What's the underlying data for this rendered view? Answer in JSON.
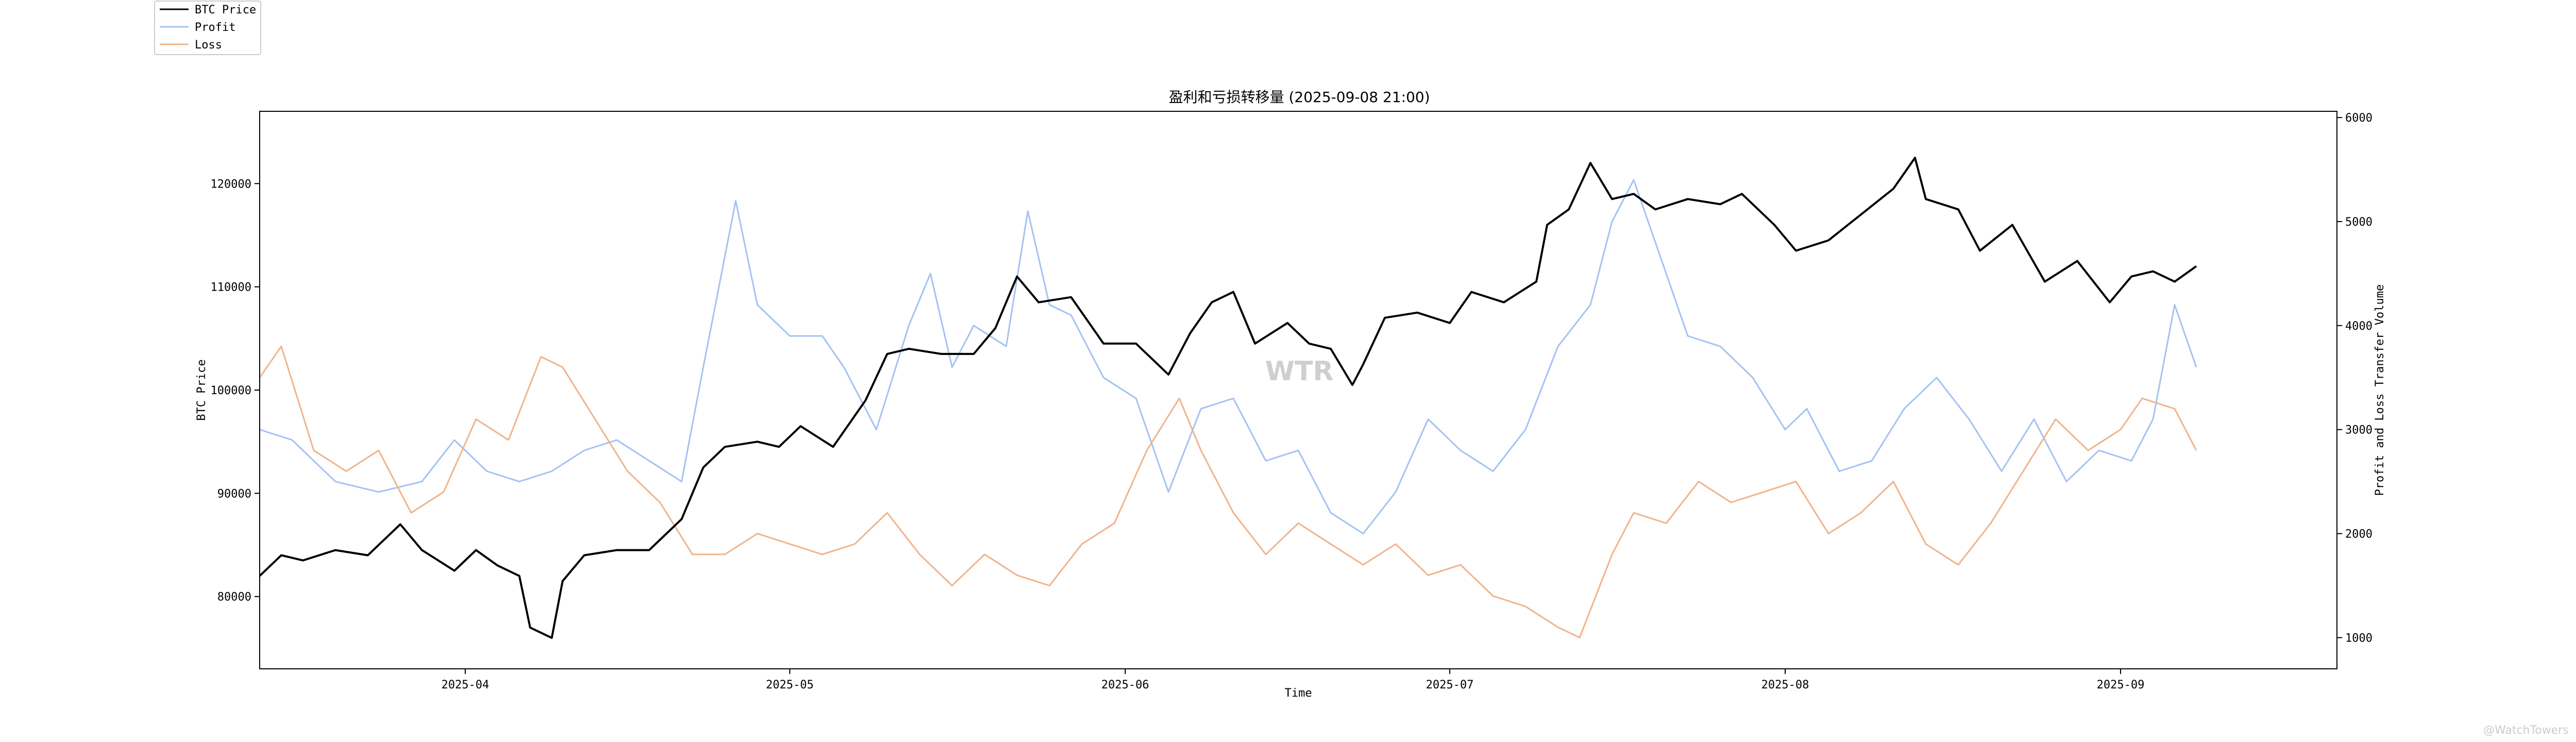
{
  "chart_data": {
    "type": "line",
    "title": "盈利和亏损转移量 (2025-09-08 21:00)",
    "xlabel": "Time",
    "ylabel_left": "BTC Price",
    "ylabel_right": "Profit and Loss Transfer Volume",
    "x_ticks": [
      "2025-04",
      "2025-05",
      "2025-06",
      "2025-07",
      "2025-08",
      "2025-09"
    ],
    "x_tick_dates": [
      "2025-04-01",
      "2025-05-01",
      "2025-06-01",
      "2025-07-01",
      "2025-08-01",
      "2025-09-01"
    ],
    "xlim": [
      "2025-03-13",
      "2025-09-21"
    ],
    "left_yticks": [
      80000,
      90000,
      100000,
      110000,
      120000
    ],
    "left_ylim": [
      73000,
      127000
    ],
    "right_yticks": [
      1000,
      2000,
      3000,
      4000,
      5000,
      6000
    ],
    "right_ylim": [
      700,
      6060
    ],
    "legend_position": "top-left (outside plot)",
    "grid": false,
    "watermark": "WTR",
    "series": [
      {
        "name": "BTC Price",
        "axis": "left",
        "color": "#000000",
        "highlight_color": "#1a1a8c",
        "points": [
          [
            "2025-03-13",
            82000
          ],
          [
            "2025-03-15",
            84000
          ],
          [
            "2025-03-17",
            83500
          ],
          [
            "2025-03-20",
            84500
          ],
          [
            "2025-03-23",
            84000
          ],
          [
            "2025-03-26",
            87000
          ],
          [
            "2025-03-28",
            84500
          ],
          [
            "2025-03-31",
            82500
          ],
          [
            "2025-04-02",
            84500
          ],
          [
            "2025-04-04",
            83000
          ],
          [
            "2025-04-06",
            82000
          ],
          [
            "2025-04-07",
            77000
          ],
          [
            "2025-04-09",
            76000
          ],
          [
            "2025-04-10",
            81500
          ],
          [
            "2025-04-12",
            84000
          ],
          [
            "2025-04-15",
            84500
          ],
          [
            "2025-04-18",
            84500
          ],
          [
            "2025-04-21",
            87500
          ],
          [
            "2025-04-23",
            92500
          ],
          [
            "2025-04-25",
            94500
          ],
          [
            "2025-04-28",
            95000
          ],
          [
            "2025-04-30",
            94500
          ],
          [
            "2025-05-02",
            96500
          ],
          [
            "2025-05-05",
            94500
          ],
          [
            "2025-05-08",
            99000
          ],
          [
            "2025-05-10",
            103500
          ],
          [
            "2025-05-12",
            104000
          ],
          [
            "2025-05-15",
            103500
          ],
          [
            "2025-05-18",
            103500
          ],
          [
            "2025-05-20",
            106000
          ],
          [
            "2025-05-22",
            111000
          ],
          [
            "2025-05-24",
            108500
          ],
          [
            "2025-05-27",
            109000
          ],
          [
            "2025-05-30",
            104500
          ],
          [
            "2025-06-02",
            104500
          ],
          [
            "2025-06-05",
            101500
          ],
          [
            "2025-06-07",
            105500
          ],
          [
            "2025-06-09",
            108500
          ],
          [
            "2025-06-11",
            109500
          ],
          [
            "2025-06-13",
            104500
          ],
          [
            "2025-06-16",
            106500
          ],
          [
            "2025-06-18",
            104500
          ],
          [
            "2025-06-20",
            104000
          ],
          [
            "2025-06-22",
            100500
          ],
          [
            "2025-06-23",
            102500
          ],
          [
            "2025-06-25",
            107000
          ],
          [
            "2025-06-28",
            107500
          ],
          [
            "2025-07-01",
            106500
          ],
          [
            "2025-07-03",
            109500
          ],
          [
            "2025-07-06",
            108500
          ],
          [
            "2025-07-09",
            110500
          ],
          [
            "2025-07-10",
            116000
          ],
          [
            "2025-07-12",
            117500
          ],
          [
            "2025-07-14",
            122000
          ],
          [
            "2025-07-16",
            118500
          ],
          [
            "2025-07-18",
            119000
          ],
          [
            "2025-07-20",
            117500
          ],
          [
            "2025-07-23",
            118500
          ],
          [
            "2025-07-26",
            118000
          ],
          [
            "2025-07-28",
            119000
          ],
          [
            "2025-07-31",
            116000
          ],
          [
            "2025-08-02",
            113500
          ],
          [
            "2025-08-05",
            114500
          ],
          [
            "2025-08-08",
            117000
          ],
          [
            "2025-08-11",
            119500
          ],
          [
            "2025-08-13",
            122500
          ],
          [
            "2025-08-14",
            118500
          ],
          [
            "2025-08-17",
            117500
          ],
          [
            "2025-08-19",
            113500
          ],
          [
            "2025-08-22",
            116000
          ],
          [
            "2025-08-25",
            110500
          ],
          [
            "2025-08-28",
            112500
          ],
          [
            "2025-08-31",
            108500
          ],
          [
            "2025-09-02",
            111000
          ],
          [
            "2025-09-04",
            111500
          ],
          [
            "2025-09-06",
            110500
          ],
          [
            "2025-09-08",
            112000
          ]
        ]
      },
      {
        "name": "Profit",
        "axis": "right",
        "color": "#a4c2f4",
        "points": [
          [
            "2025-03-13",
            3000
          ],
          [
            "2025-03-16",
            2900
          ],
          [
            "2025-03-20",
            2500
          ],
          [
            "2025-03-24",
            2400
          ],
          [
            "2025-03-28",
            2500
          ],
          [
            "2025-03-31",
            2900
          ],
          [
            "2025-04-03",
            2600
          ],
          [
            "2025-04-06",
            2500
          ],
          [
            "2025-04-09",
            2600
          ],
          [
            "2025-04-12",
            2800
          ],
          [
            "2025-04-15",
            2900
          ],
          [
            "2025-04-18",
            2700
          ],
          [
            "2025-04-21",
            2500
          ],
          [
            "2025-04-23",
            3600
          ],
          [
            "2025-04-26",
            5200
          ],
          [
            "2025-04-28",
            4200
          ],
          [
            "2025-05-01",
            3900
          ],
          [
            "2025-05-04",
            3900
          ],
          [
            "2025-05-06",
            3600
          ],
          [
            "2025-05-09",
            3000
          ],
          [
            "2025-05-12",
            4000
          ],
          [
            "2025-05-14",
            4500
          ],
          [
            "2025-05-16",
            3600
          ],
          [
            "2025-05-18",
            4000
          ],
          [
            "2025-05-21",
            3800
          ],
          [
            "2025-05-23",
            5100
          ],
          [
            "2025-05-25",
            4200
          ],
          [
            "2025-05-27",
            4100
          ],
          [
            "2025-05-30",
            3500
          ],
          [
            "2025-06-02",
            3300
          ],
          [
            "2025-06-05",
            2400
          ],
          [
            "2025-06-08",
            3200
          ],
          [
            "2025-06-11",
            3300
          ],
          [
            "2025-06-14",
            2700
          ],
          [
            "2025-06-17",
            2800
          ],
          [
            "2025-06-20",
            2200
          ],
          [
            "2025-06-23",
            2000
          ],
          [
            "2025-06-26",
            2400
          ],
          [
            "2025-06-29",
            3100
          ],
          [
            "2025-07-02",
            2800
          ],
          [
            "2025-07-05",
            2600
          ],
          [
            "2025-07-08",
            3000
          ],
          [
            "2025-07-11",
            3800
          ],
          [
            "2025-07-14",
            4200
          ],
          [
            "2025-07-16",
            5000
          ],
          [
            "2025-07-18",
            5400
          ],
          [
            "2025-07-21",
            4500
          ],
          [
            "2025-07-23",
            3900
          ],
          [
            "2025-07-26",
            3800
          ],
          [
            "2025-07-29",
            3500
          ],
          [
            "2025-08-01",
            3000
          ],
          [
            "2025-08-03",
            3200
          ],
          [
            "2025-08-06",
            2600
          ],
          [
            "2025-08-09",
            2700
          ],
          [
            "2025-08-12",
            3200
          ],
          [
            "2025-08-15",
            3500
          ],
          [
            "2025-08-18",
            3100
          ],
          [
            "2025-08-21",
            2600
          ],
          [
            "2025-08-24",
            3100
          ],
          [
            "2025-08-27",
            2500
          ],
          [
            "2025-08-30",
            2800
          ],
          [
            "2025-09-02",
            2700
          ],
          [
            "2025-09-04",
            3100
          ],
          [
            "2025-09-06",
            4200
          ],
          [
            "2025-09-08",
            3600
          ]
        ]
      },
      {
        "name": "Loss",
        "axis": "right",
        "color": "#f0b48a",
        "points": [
          [
            "2025-03-13",
            3500
          ],
          [
            "2025-03-15",
            3800
          ],
          [
            "2025-03-18",
            2800
          ],
          [
            "2025-03-21",
            2600
          ],
          [
            "2025-03-24",
            2800
          ],
          [
            "2025-03-27",
            2200
          ],
          [
            "2025-03-30",
            2400
          ],
          [
            "2025-04-02",
            3100
          ],
          [
            "2025-04-05",
            2900
          ],
          [
            "2025-04-08",
            3700
          ],
          [
            "2025-04-10",
            3600
          ],
          [
            "2025-04-13",
            3100
          ],
          [
            "2025-04-16",
            2600
          ],
          [
            "2025-04-19",
            2300
          ],
          [
            "2025-04-22",
            1800
          ],
          [
            "2025-04-25",
            1800
          ],
          [
            "2025-04-28",
            2000
          ],
          [
            "2025-05-01",
            1900
          ],
          [
            "2025-05-04",
            1800
          ],
          [
            "2025-05-07",
            1900
          ],
          [
            "2025-05-10",
            2200
          ],
          [
            "2025-05-13",
            1800
          ],
          [
            "2025-05-16",
            1500
          ],
          [
            "2025-05-19",
            1800
          ],
          [
            "2025-05-22",
            1600
          ],
          [
            "2025-05-25",
            1500
          ],
          [
            "2025-05-28",
            1900
          ],
          [
            "2025-05-31",
            2100
          ],
          [
            "2025-06-03",
            2800
          ],
          [
            "2025-06-06",
            3300
          ],
          [
            "2025-06-08",
            2800
          ],
          [
            "2025-06-11",
            2200
          ],
          [
            "2025-06-14",
            1800
          ],
          [
            "2025-06-17",
            2100
          ],
          [
            "2025-06-20",
            1900
          ],
          [
            "2025-06-23",
            1700
          ],
          [
            "2025-06-26",
            1900
          ],
          [
            "2025-06-29",
            1600
          ],
          [
            "2025-07-02",
            1700
          ],
          [
            "2025-07-05",
            1400
          ],
          [
            "2025-07-08",
            1300
          ],
          [
            "2025-07-11",
            1100
          ],
          [
            "2025-07-13",
            1000
          ],
          [
            "2025-07-16",
            1800
          ],
          [
            "2025-07-18",
            2200
          ],
          [
            "2025-07-21",
            2100
          ],
          [
            "2025-07-24",
            2500
          ],
          [
            "2025-07-27",
            2300
          ],
          [
            "2025-07-30",
            2400
          ],
          [
            "2025-08-02",
            2500
          ],
          [
            "2025-08-05",
            2000
          ],
          [
            "2025-08-08",
            2200
          ],
          [
            "2025-08-11",
            2500
          ],
          [
            "2025-08-14",
            1900
          ],
          [
            "2025-08-17",
            1700
          ],
          [
            "2025-08-20",
            2100
          ],
          [
            "2025-08-23",
            2600
          ],
          [
            "2025-08-26",
            3100
          ],
          [
            "2025-08-29",
            2800
          ],
          [
            "2025-09-01",
            3000
          ],
          [
            "2025-09-03",
            3300
          ],
          [
            "2025-09-06",
            3200
          ],
          [
            "2025-09-08",
            2800
          ]
        ]
      }
    ]
  },
  "branding": {
    "text": "@WatchTowers"
  }
}
